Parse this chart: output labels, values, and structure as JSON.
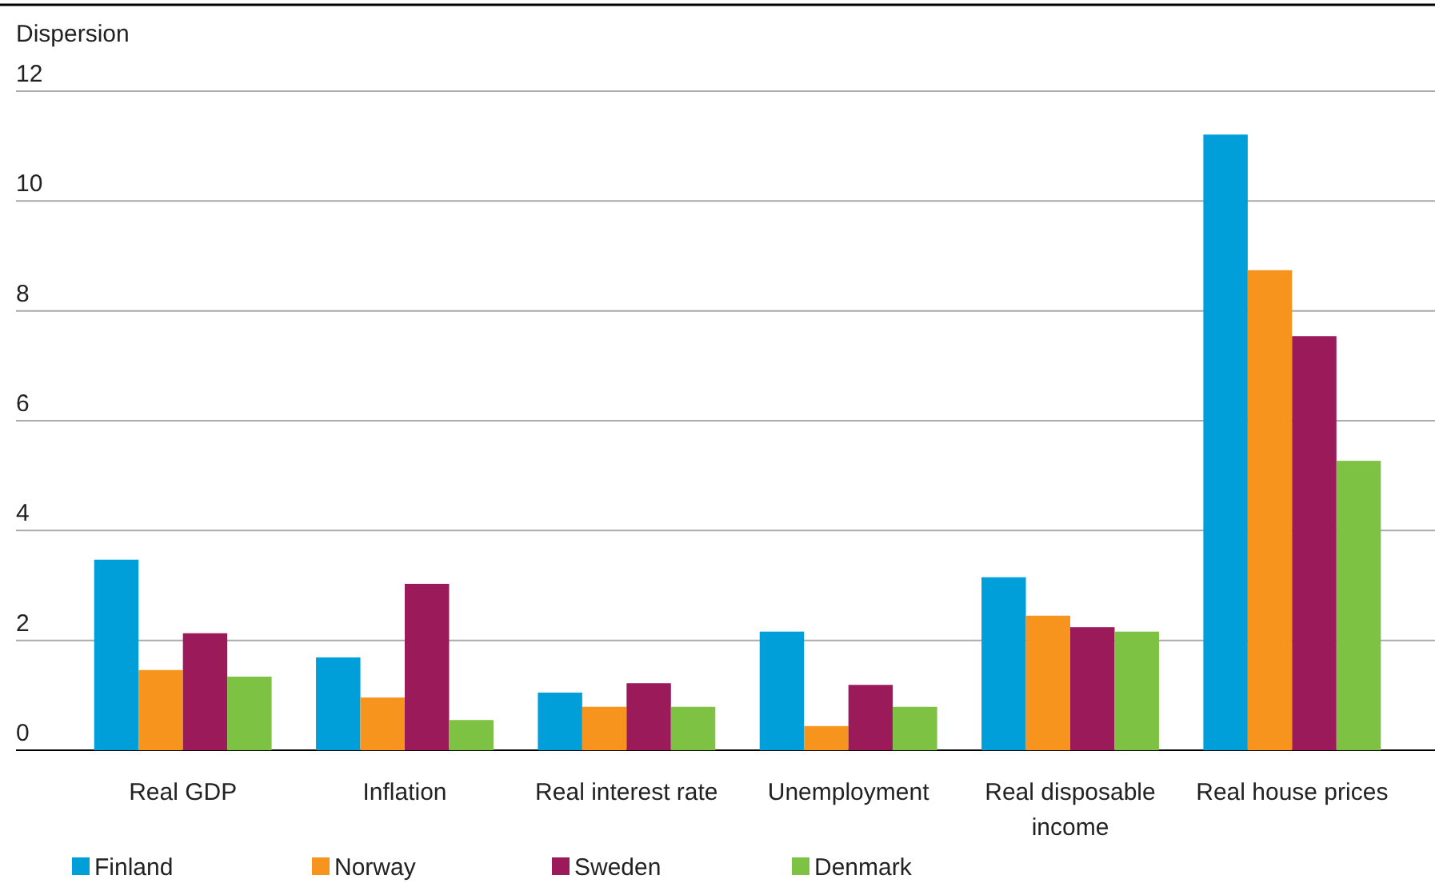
{
  "chart_data": {
    "type": "bar",
    "ylabel": "Dispersion",
    "categories": [
      "Real GDP",
      "Inflation",
      "Real interest rate",
      "Unemployment",
      "Real disposable income",
      "Real house prices"
    ],
    "series": [
      {
        "name": "Finland",
        "color": "#009fda",
        "values": [
          3.47,
          1.69,
          1.05,
          2.16,
          3.15,
          11.21
        ]
      },
      {
        "name": "Norway",
        "color": "#f7941d",
        "values": [
          1.46,
          0.96,
          0.79,
          0.44,
          2.45,
          8.74
        ]
      },
      {
        "name": "Sweden",
        "color": "#9b1b5a",
        "values": [
          2.13,
          3.03,
          1.22,
          1.19,
          2.24,
          7.54
        ]
      },
      {
        "name": "Denmark",
        "color": "#7dc242",
        "values": [
          1.34,
          0.55,
          0.79,
          0.79,
          2.16,
          5.27
        ]
      }
    ],
    "ylim": [
      0,
      12
    ],
    "yticks": [
      0,
      2,
      4,
      6,
      8,
      10,
      12
    ],
    "grid": "y",
    "legend": "bottom"
  }
}
